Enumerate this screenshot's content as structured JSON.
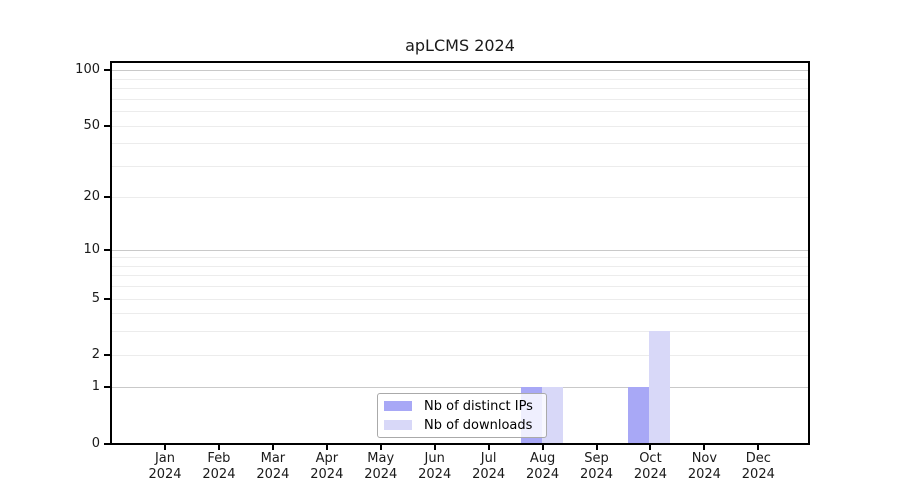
{
  "page": {
    "background_color": "#ffffff"
  },
  "chart_data": {
    "type": "bar",
    "title": "apLCMS 2024",
    "xlabel": "",
    "ylabel": "",
    "year": "2024",
    "months": [
      "Jan",
      "Feb",
      "Mar",
      "Apr",
      "May",
      "Jun",
      "Jul",
      "Aug",
      "Sep",
      "Oct",
      "Nov",
      "Dec"
    ],
    "series": [
      {
        "name": "Nb of distinct IPs",
        "color": "#a8a8f6",
        "values": [
          0,
          0,
          0,
          0,
          0,
          0,
          0,
          1,
          0,
          1,
          0,
          0
        ]
      },
      {
        "name": "Nb of downloads",
        "color": "#d8d8f8",
        "values": [
          0,
          0,
          0,
          0,
          0,
          0,
          0,
          1,
          0,
          3,
          0,
          0
        ]
      }
    ],
    "y_scale": "log10(1+x)",
    "y_tick_values": [
      0,
      1,
      2,
      5,
      10,
      20,
      50,
      100
    ],
    "y_tick_labels": [
      "0",
      "1",
      "2",
      "5",
      "10",
      "20",
      "50",
      "100"
    ],
    "grid": true,
    "grid_major_values": [
      1,
      10,
      100
    ],
    "grid_minor_values": [
      2,
      3,
      4,
      5,
      6,
      7,
      8,
      9,
      20,
      30,
      40,
      50,
      60,
      70,
      80,
      90
    ],
    "ylim": [
      0,
      113
    ],
    "legend_position": "bottom-center-inside",
    "colors": {
      "axis": "#000000",
      "grid_major": "#c9c9c9",
      "grid_minor": "#ececec",
      "tick_label": "#1a1a1a",
      "legend_border": "#aaaaaa"
    }
  }
}
